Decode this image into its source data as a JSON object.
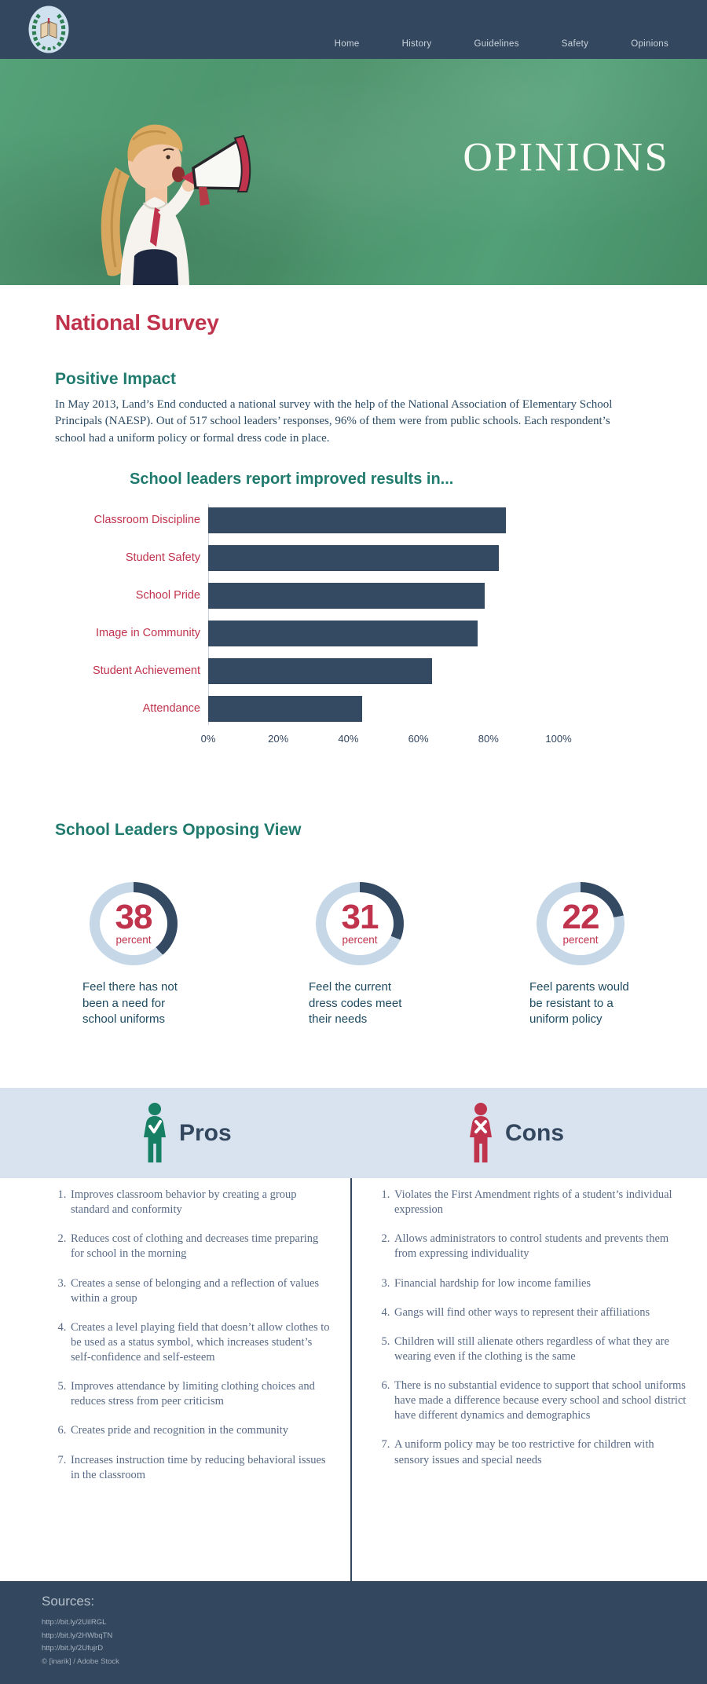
{
  "colors": {
    "navy": "#344a63",
    "ring": "#c6d7e8",
    "crimson": "#c0334d",
    "teal": "#207b6e",
    "band_blue": "#d9e3ef",
    "pros_green": "#177f63",
    "cons_red": "#c0334d",
    "hero_green": "#4f9b72"
  },
  "header": {
    "nav": [
      "Home",
      "History",
      "Guidelines",
      "Safety",
      "Opinions"
    ],
    "logo": "laurel-wreath-open-book-emblem"
  },
  "hero": {
    "title": "OPINIONS"
  },
  "survey": {
    "title": "National Survey",
    "subtitle": "Positive Impact",
    "paragraph": "In May 2013, Land’s End conducted a national survey with the help of the National Association of Elementary School Principals (NAESP). Out of 517 school leaders’ responses, 96% of them were from public schools. Each respondent’s school had a uniform policy or formal dress code in place."
  },
  "chart_data": [
    {
      "type": "bar",
      "orientation": "horizontal",
      "title": "School leaders report improved results in...",
      "categories": [
        "Classroom Discipline",
        "Student Safety",
        "School Pride",
        "Image in Community",
        "Student Achievement",
        "Attendance"
      ],
      "values": [
        85,
        83,
        79,
        77,
        64,
        44
      ],
      "x_ticks": [
        "0%",
        "20%",
        "40%",
        "60%",
        "80%",
        "100%"
      ],
      "xlim": [
        0,
        100
      ],
      "grid": false,
      "bar_color": "#344a63",
      "category_label_color": "#c0334d"
    },
    {
      "type": "pie",
      "style": "donut",
      "title": "School Leaders Opposing View",
      "values": [
        38,
        31,
        22
      ],
      "unit": "percent",
      "captions": [
        "Feel there has not been a need for school uniforms",
        "Feel the current dress codes meet their needs",
        "Feel parents would be resistant to a uniform policy"
      ],
      "arc_color": "#344a63",
      "ring_color": "#c6d7e8"
    }
  ],
  "proscons": {
    "pros_label": "Pros",
    "cons_label": "Cons",
    "pros": [
      "Improves classroom behavior by creating a group standard and conformity",
      "Reduces cost of clothing and decreases time preparing for school in the morning",
      "Creates a sense of belonging and a reflection of values within a group",
      "Creates a level playing field that doesn’t allow clothes to be used as a status symbol, which increases student’s self-confidence and self-esteem",
      "Improves attendance by limiting clothing choices and reduces stress from peer criticism",
      "Creates pride and recognition in the community",
      "Increases instruction time by reducing behavioral issues in the classroom"
    ],
    "cons": [
      "Violates the First Amendment rights of a student’s individual expression",
      "Allows administrators to control students and prevents them from expressing individuality",
      "Financial hardship for low income families",
      "Gangs will find other ways to represent their affiliations",
      "Children will still alienate others regardless of what they are wearing even if the clothing is the same",
      "There is no substantial evidence to support that school uniforms have made a difference because every school and school district have different dynamics and demographics",
      "A uniform policy may be too restrictive for children with sensory issues and special needs"
    ]
  },
  "footer": {
    "sources_label": "Sources:",
    "links": [
      "http://bit.ly/2UiIRGL",
      "http://bit.ly/2HWbqTN",
      "http://bit.ly/2UfujrD"
    ],
    "credit": "© [inarik] / Adobe Stock"
  }
}
